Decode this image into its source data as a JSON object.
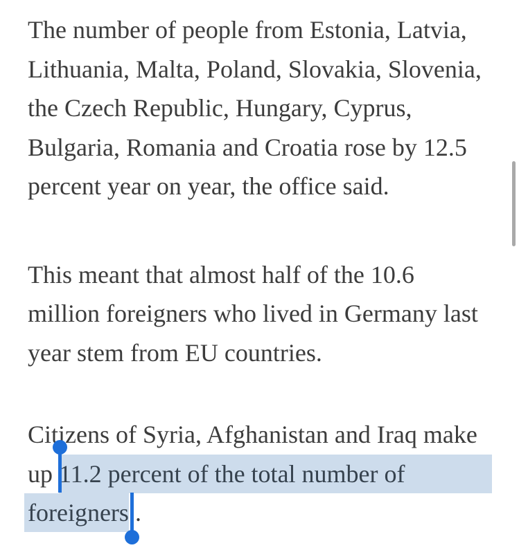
{
  "article": {
    "paragraphs": [
      {
        "lines": [
          "The number of people from Estonia, Latvia,",
          "Lithuania, Malta, Poland, Slovakia, Slovenia,",
          "the Czech Republic, Hungary, Cyprus,",
          "Bulgaria, Romania and Croatia rose by 12.5",
          "percent year on year, the office said."
        ]
      },
      {
        "lines": [
          "This meant that almost half of the 10.6",
          "million foreigners who lived in Germany last",
          "year stem from EU countries."
        ]
      },
      {
        "line1": "Citizens of Syria, Afghanistan and Iraq make",
        "line2_prefix": "up ",
        "line2_selected": "11.2 percent of the total number of",
        "line3_selected": "foreigners",
        "line3_after": "."
      }
    ]
  },
  "selection": {
    "selected_text": "11.2 percent of the total number of foreigners",
    "highlight_color": "#cddcec",
    "handle_color": "#1e6fd9",
    "selected_text_color": "#36424e"
  },
  "text_color": "#3c3c3c",
  "scrollbar": {
    "thumb_color": "#a9a9a9"
  }
}
